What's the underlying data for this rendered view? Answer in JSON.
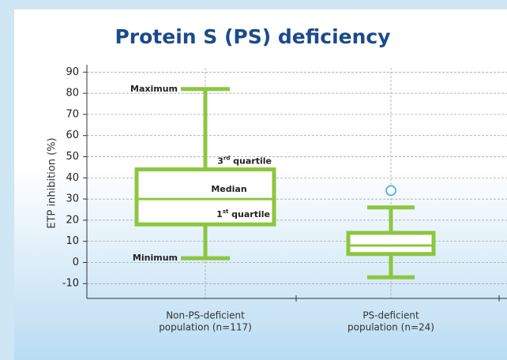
{
  "chart_data": {
    "type": "box",
    "title": "Protein S (PS) deficiency",
    "ylabel": "ETP inhibition (%)",
    "categories": [
      [
        "Non-PS-deficient",
        "population (n=117)"
      ],
      [
        "PS-deficient",
        "population (n=24)"
      ]
    ],
    "boxes": [
      {
        "min": 2,
        "q1": 18,
        "median": 30,
        "q3": 44,
        "max": 82,
        "outliers": []
      },
      {
        "min": -7,
        "q1": 4,
        "median": 8,
        "q3": 14,
        "max": 26,
        "outliers": [
          34
        ]
      }
    ],
    "annotations": [
      "Maximum",
      {
        "base": "3",
        "sup": "rd",
        "rest": " quartile"
      },
      "Median",
      {
        "base": "1",
        "sup": "st",
        "rest": " quartile"
      },
      "Minimum"
    ],
    "color": "#8dc63f",
    "outlier_color": "#29abe2",
    "ylim": [
      -17,
      92
    ],
    "yticks": [
      -10,
      0,
      10,
      20,
      30,
      40,
      50,
      60,
      70,
      80,
      90
    ],
    "grid": true
  }
}
